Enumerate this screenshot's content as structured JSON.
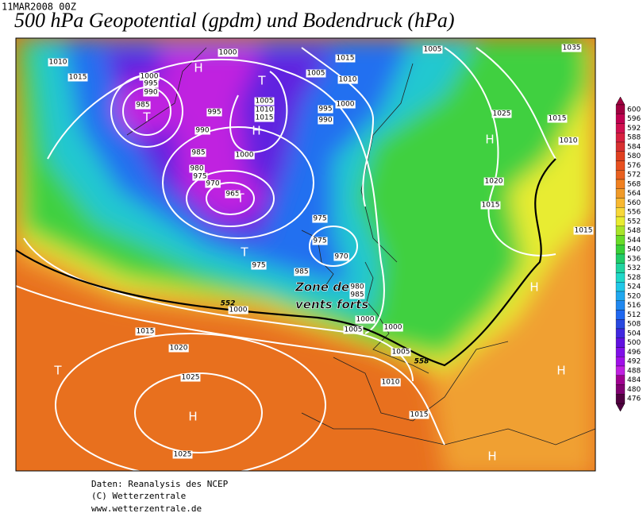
{
  "header": {
    "timestamp": "11MAR2008 00Z",
    "title": "500 hPa Geopotential (gpdm) und Bodendruck (hPa)"
  },
  "map": {
    "pressure_labels": [
      1010,
      1015,
      1000,
      995,
      990,
      985,
      1000,
      1005,
      1010,
      1015,
      995,
      990,
      985,
      1000,
      980,
      975,
      970,
      965,
      975,
      1015,
      1005,
      1010,
      1000,
      995,
      990,
      975,
      975,
      970,
      985,
      980,
      985,
      1000,
      1015,
      1020,
      1025,
      1025,
      1000,
      1005,
      1000,
      1005,
      1010,
      1015,
      1005,
      1035,
      1025,
      1015,
      1010,
      1020,
      1015,
      1015
    ],
    "centers": [
      "T",
      "H",
      "T",
      "H",
      "T",
      "T",
      "T",
      "H",
      "H",
      "H",
      "H",
      "H"
    ],
    "contour_labels": [
      552,
      558
    ],
    "annotation": [
      "Zone de",
      "vents forts"
    ]
  },
  "colorbar": {
    "levels": [
      600,
      596,
      592,
      588,
      584,
      580,
      576,
      572,
      568,
      564,
      560,
      556,
      552,
      548,
      544,
      540,
      536,
      532,
      528,
      524,
      520,
      516,
      512,
      508,
      504,
      500,
      496,
      492,
      488,
      484,
      480,
      476
    ],
    "colors": [
      "#a00040",
      "#c00050",
      "#d01050",
      "#d82040",
      "#d83030",
      "#e04020",
      "#e85020",
      "#e86020",
      "#f08020",
      "#f09a28",
      "#f8b830",
      "#f8d838",
      "#e8ec30",
      "#a8e428",
      "#68dc28",
      "#38d038",
      "#20cc68",
      "#20d4a0",
      "#20d8c8",
      "#20c8e8",
      "#20a8f0",
      "#2088f0",
      "#2068f0",
      "#2848e0",
      "#4028e0",
      "#6010e0",
      "#8010e8",
      "#a010e8",
      "#c020e0",
      "#a00090",
      "#800070",
      "#500040"
    ]
  },
  "footer": [
    "Daten: Reanalysis des NCEP",
    "(C) Wetterzentrale",
    "www.wetterzentrale.de"
  ]
}
